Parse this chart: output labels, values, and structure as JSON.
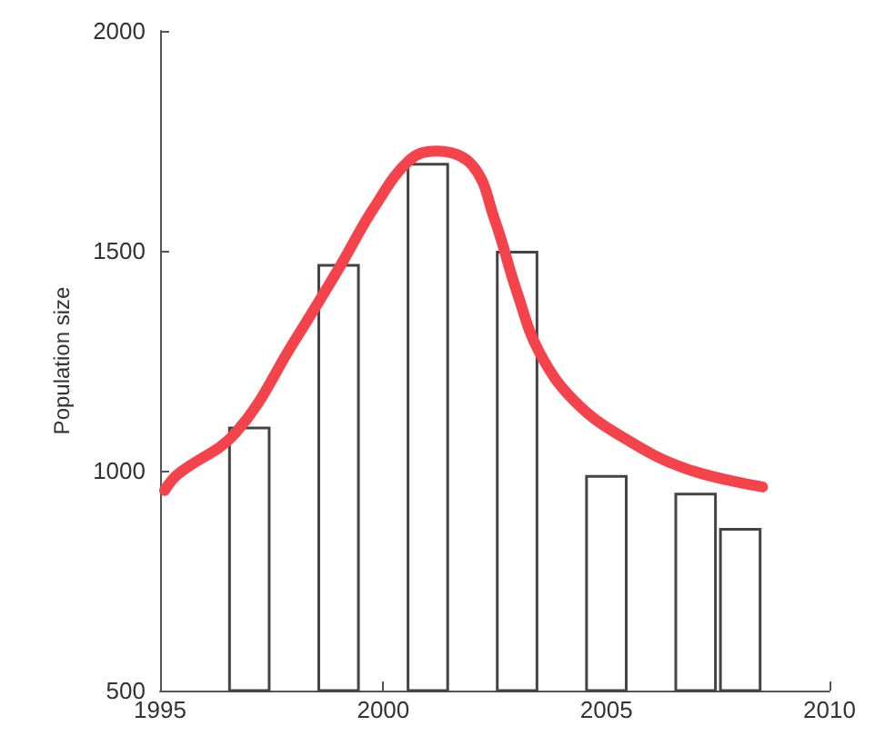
{
  "chart_data": {
    "type": "bar",
    "ylabel": "Population size",
    "xlim": [
      1995,
      2010
    ],
    "xticks": [
      1995,
      2000,
      2005,
      2010
    ],
    "ylim": [
      500,
      2000
    ],
    "yticks": [
      500,
      1000,
      1500,
      2000
    ],
    "grid": false,
    "series": [
      {
        "color": "#444444",
        "x": [
          1997,
          1999,
          2001,
          2003,
          2005,
          2007,
          2008
        ],
        "values": [
          1100,
          1470,
          1700,
          1500,
          990,
          950,
          870
        ]
      },
      {
        "type": "line",
        "color": "#f5434b",
        "marker": "none",
        "line_style": "solid",
        "x": [
          1995.1,
          1995.4,
          1996.7,
          1998.0,
          1999.0,
          1999.8,
          2000.6,
          2001.2,
          2002.0,
          2002.5,
          2003.0,
          2003.5,
          2004.3,
          2005.4,
          2006.8,
          2008.5
        ],
        "values": [
          955,
          992,
          1087,
          1293,
          1459,
          1599,
          1707,
          1727,
          1694,
          1570,
          1405,
          1269,
          1157,
          1074,
          1004,
          963
        ]
      }
    ]
  }
}
